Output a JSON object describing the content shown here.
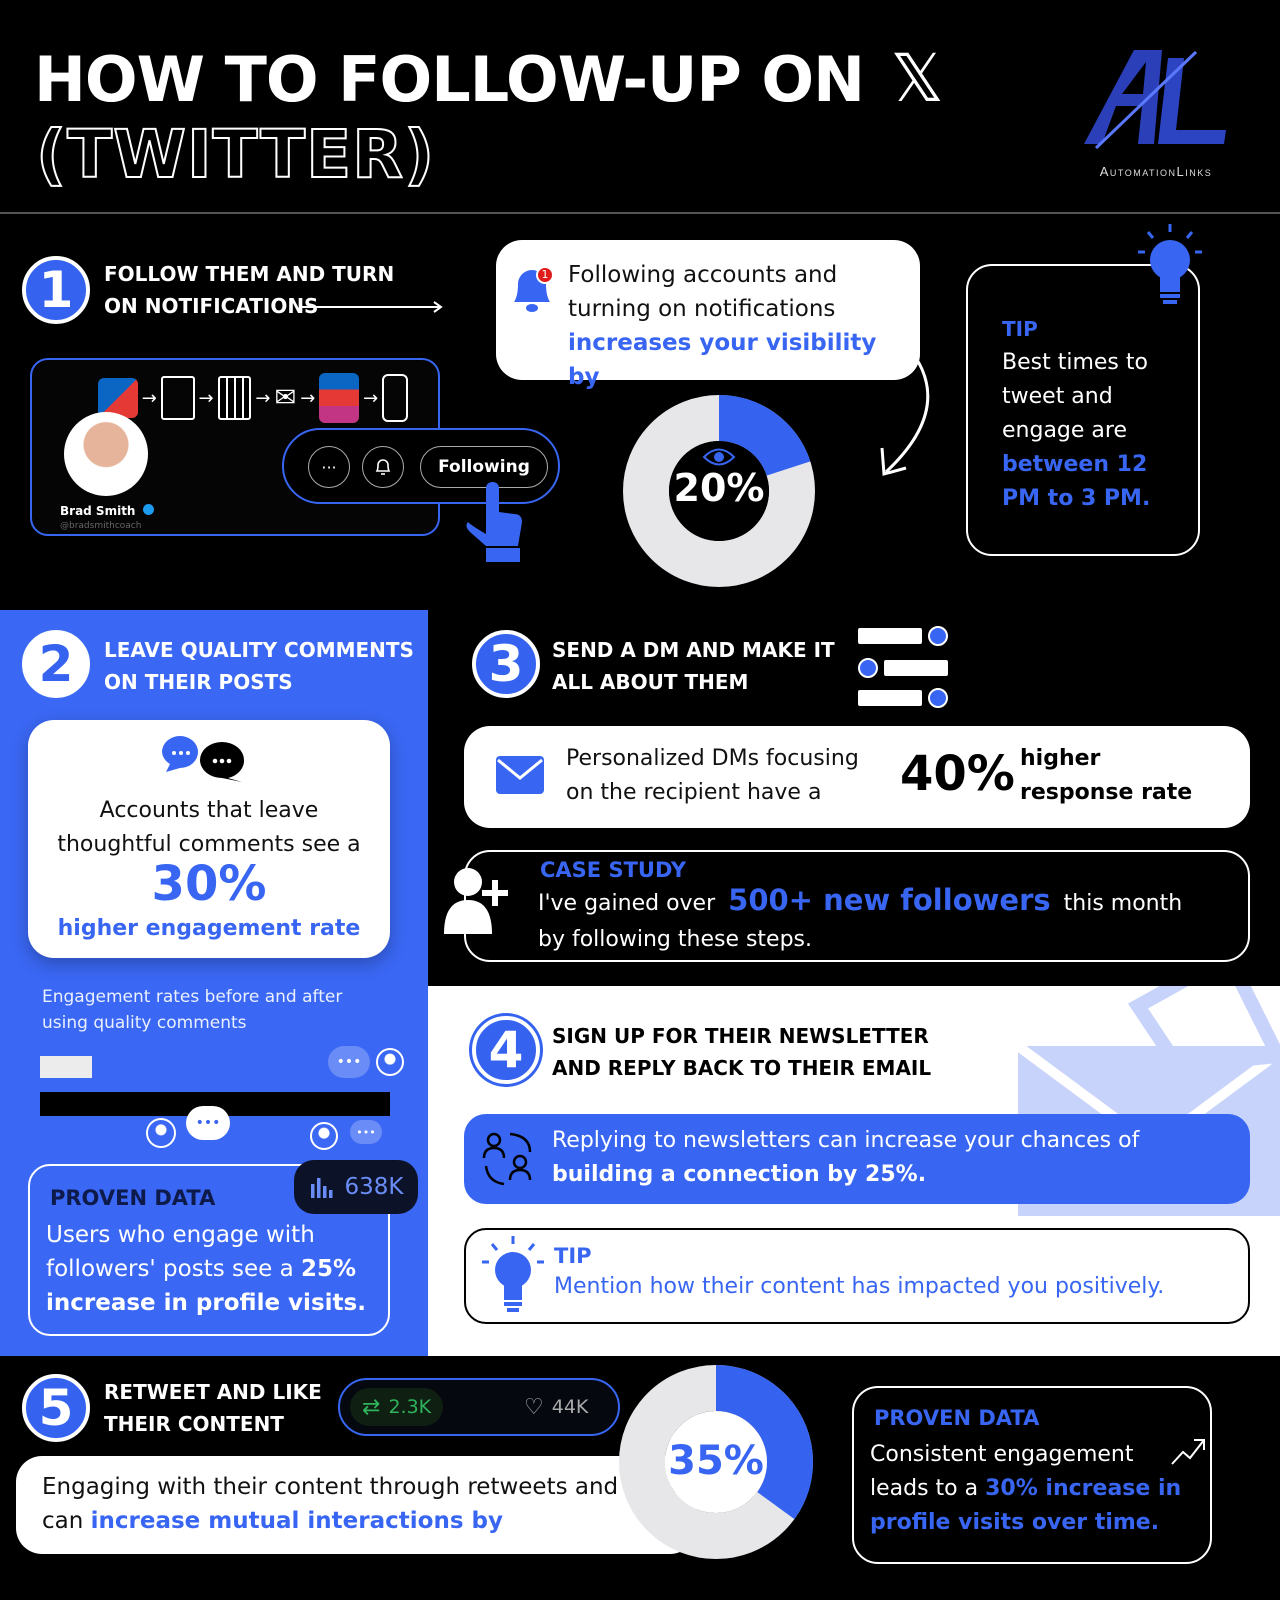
{
  "header": {
    "title_line1": "HOW TO FOLLOW-UP ON",
    "x_logo": "𝕏",
    "title_line2": "(TWITTER)",
    "brand_name": "AutomationLinks"
  },
  "step1": {
    "number": "1",
    "title": "FOLLOW THEM AND TURN ON NOTIFICATIONS",
    "notification_badge": "1",
    "bubble_text": "Following accounts and turning on notifications",
    "bubble_highlight": "increases your visibility by",
    "donut_value": "20%",
    "donut_fraction": 0.2,
    "profile_name": "Brad Smith",
    "profile_handle": "@bradsmithcoach",
    "more_label": "···",
    "following_label": "Following",
    "tip_label": "TIP",
    "tip_text": "Best times to tweet and engage are",
    "tip_highlight": "between 12 PM to 3 PM."
  },
  "step2": {
    "number": "2",
    "title": "LEAVE QUALITY COMMENTS ON THEIR POSTS",
    "card_text": "Accounts that leave thoughtful comments see a",
    "card_value": "30%",
    "card_highlight": "higher engagement rate",
    "bars_caption": "Engagement rates before and after using quality comments",
    "proven_label": "PROVEN DATA",
    "views_badge": "638K",
    "proven_text": "Users who engage with followers' posts see a",
    "proven_highlight_1": "25%",
    "proven_highlight_2": "increase in profile visits."
  },
  "step3": {
    "number": "3",
    "title": "SEND A DM AND MAKE IT ALL ABOUT THEM",
    "card_text": "Personalized DMs focusing on the recipient have a",
    "card_value": "40%",
    "card_highlight": "higher response rate",
    "case_label": "CASE STUDY",
    "case_text_before": "I've gained over",
    "case_highlight": "500+ new followers",
    "case_text_after": "this month",
    "case_text_line2": "by following these steps."
  },
  "step4": {
    "number": "4",
    "title": "SIGN UP FOR THEIR NEWSLETTER AND REPLY BACK TO THEIR EMAIL",
    "card_text": "Replying to newsletters can increase your chances of",
    "card_highlight": "building a connection by 25%.",
    "tip_label": "TIP",
    "tip_text": "Mention how their content has impacted you positively."
  },
  "step5": {
    "number": "5",
    "title": "RETWEET AND LIKE THEIR CONTENT",
    "retweets": "2.3K",
    "likes": "44K",
    "card_text": "Engaging with their content through retweets and likes can",
    "card_highlight": "increase mutual interactions by",
    "donut_value": "35%",
    "donut_fraction": 0.35,
    "proven_label": "PROVEN DATA",
    "proven_text": "Consistent engagement leads to a",
    "proven_highlight": "30% increase in profile visits over time."
  },
  "colors": {
    "accent": "#3866f2",
    "panel_blue": "#3a67f3",
    "background": "#000000",
    "light_section": "#ffffff"
  }
}
